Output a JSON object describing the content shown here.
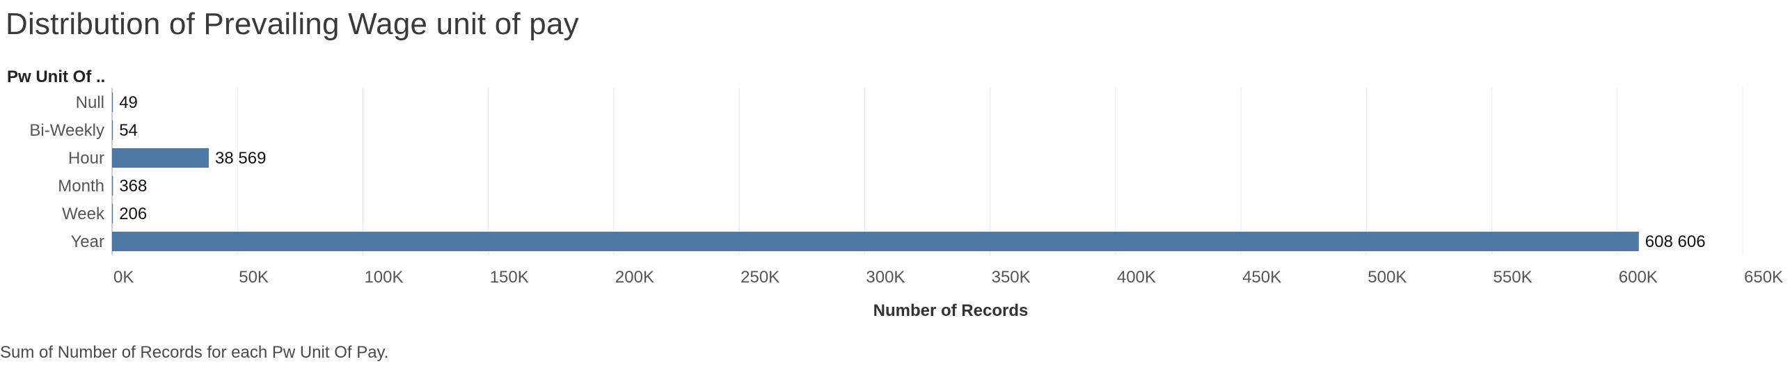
{
  "chart_data": {
    "type": "bar",
    "orientation": "horizontal",
    "title": "Distribution of Prevailing Wage unit of pay",
    "row_header": "Pw Unit Of ..",
    "categories": [
      "Null",
      "Bi-Weekly",
      "Hour",
      "Month",
      "Week",
      "Year"
    ],
    "values": [
      49,
      54,
      38569,
      368,
      206,
      608606
    ],
    "value_labels": [
      "49",
      "54",
      "38 569",
      "368",
      "206",
      "608 606"
    ],
    "xlabel": "Number of Records",
    "xlim": [
      0,
      650000
    ],
    "xticks": [
      0,
      50000,
      100000,
      150000,
      200000,
      250000,
      300000,
      350000,
      400000,
      450000,
      500000,
      550000,
      600000,
      650000
    ],
    "xtick_labels": [
      "0K",
      "50K",
      "100K",
      "150K",
      "200K",
      "250K",
      "300K",
      "350K",
      "400K",
      "450K",
      "500K",
      "550K",
      "600K",
      "650K"
    ],
    "grid": true,
    "legend": "none",
    "bar_color": "#4e79a7",
    "caption": "Sum of Number of Records for each Pw Unit Of Pay."
  }
}
